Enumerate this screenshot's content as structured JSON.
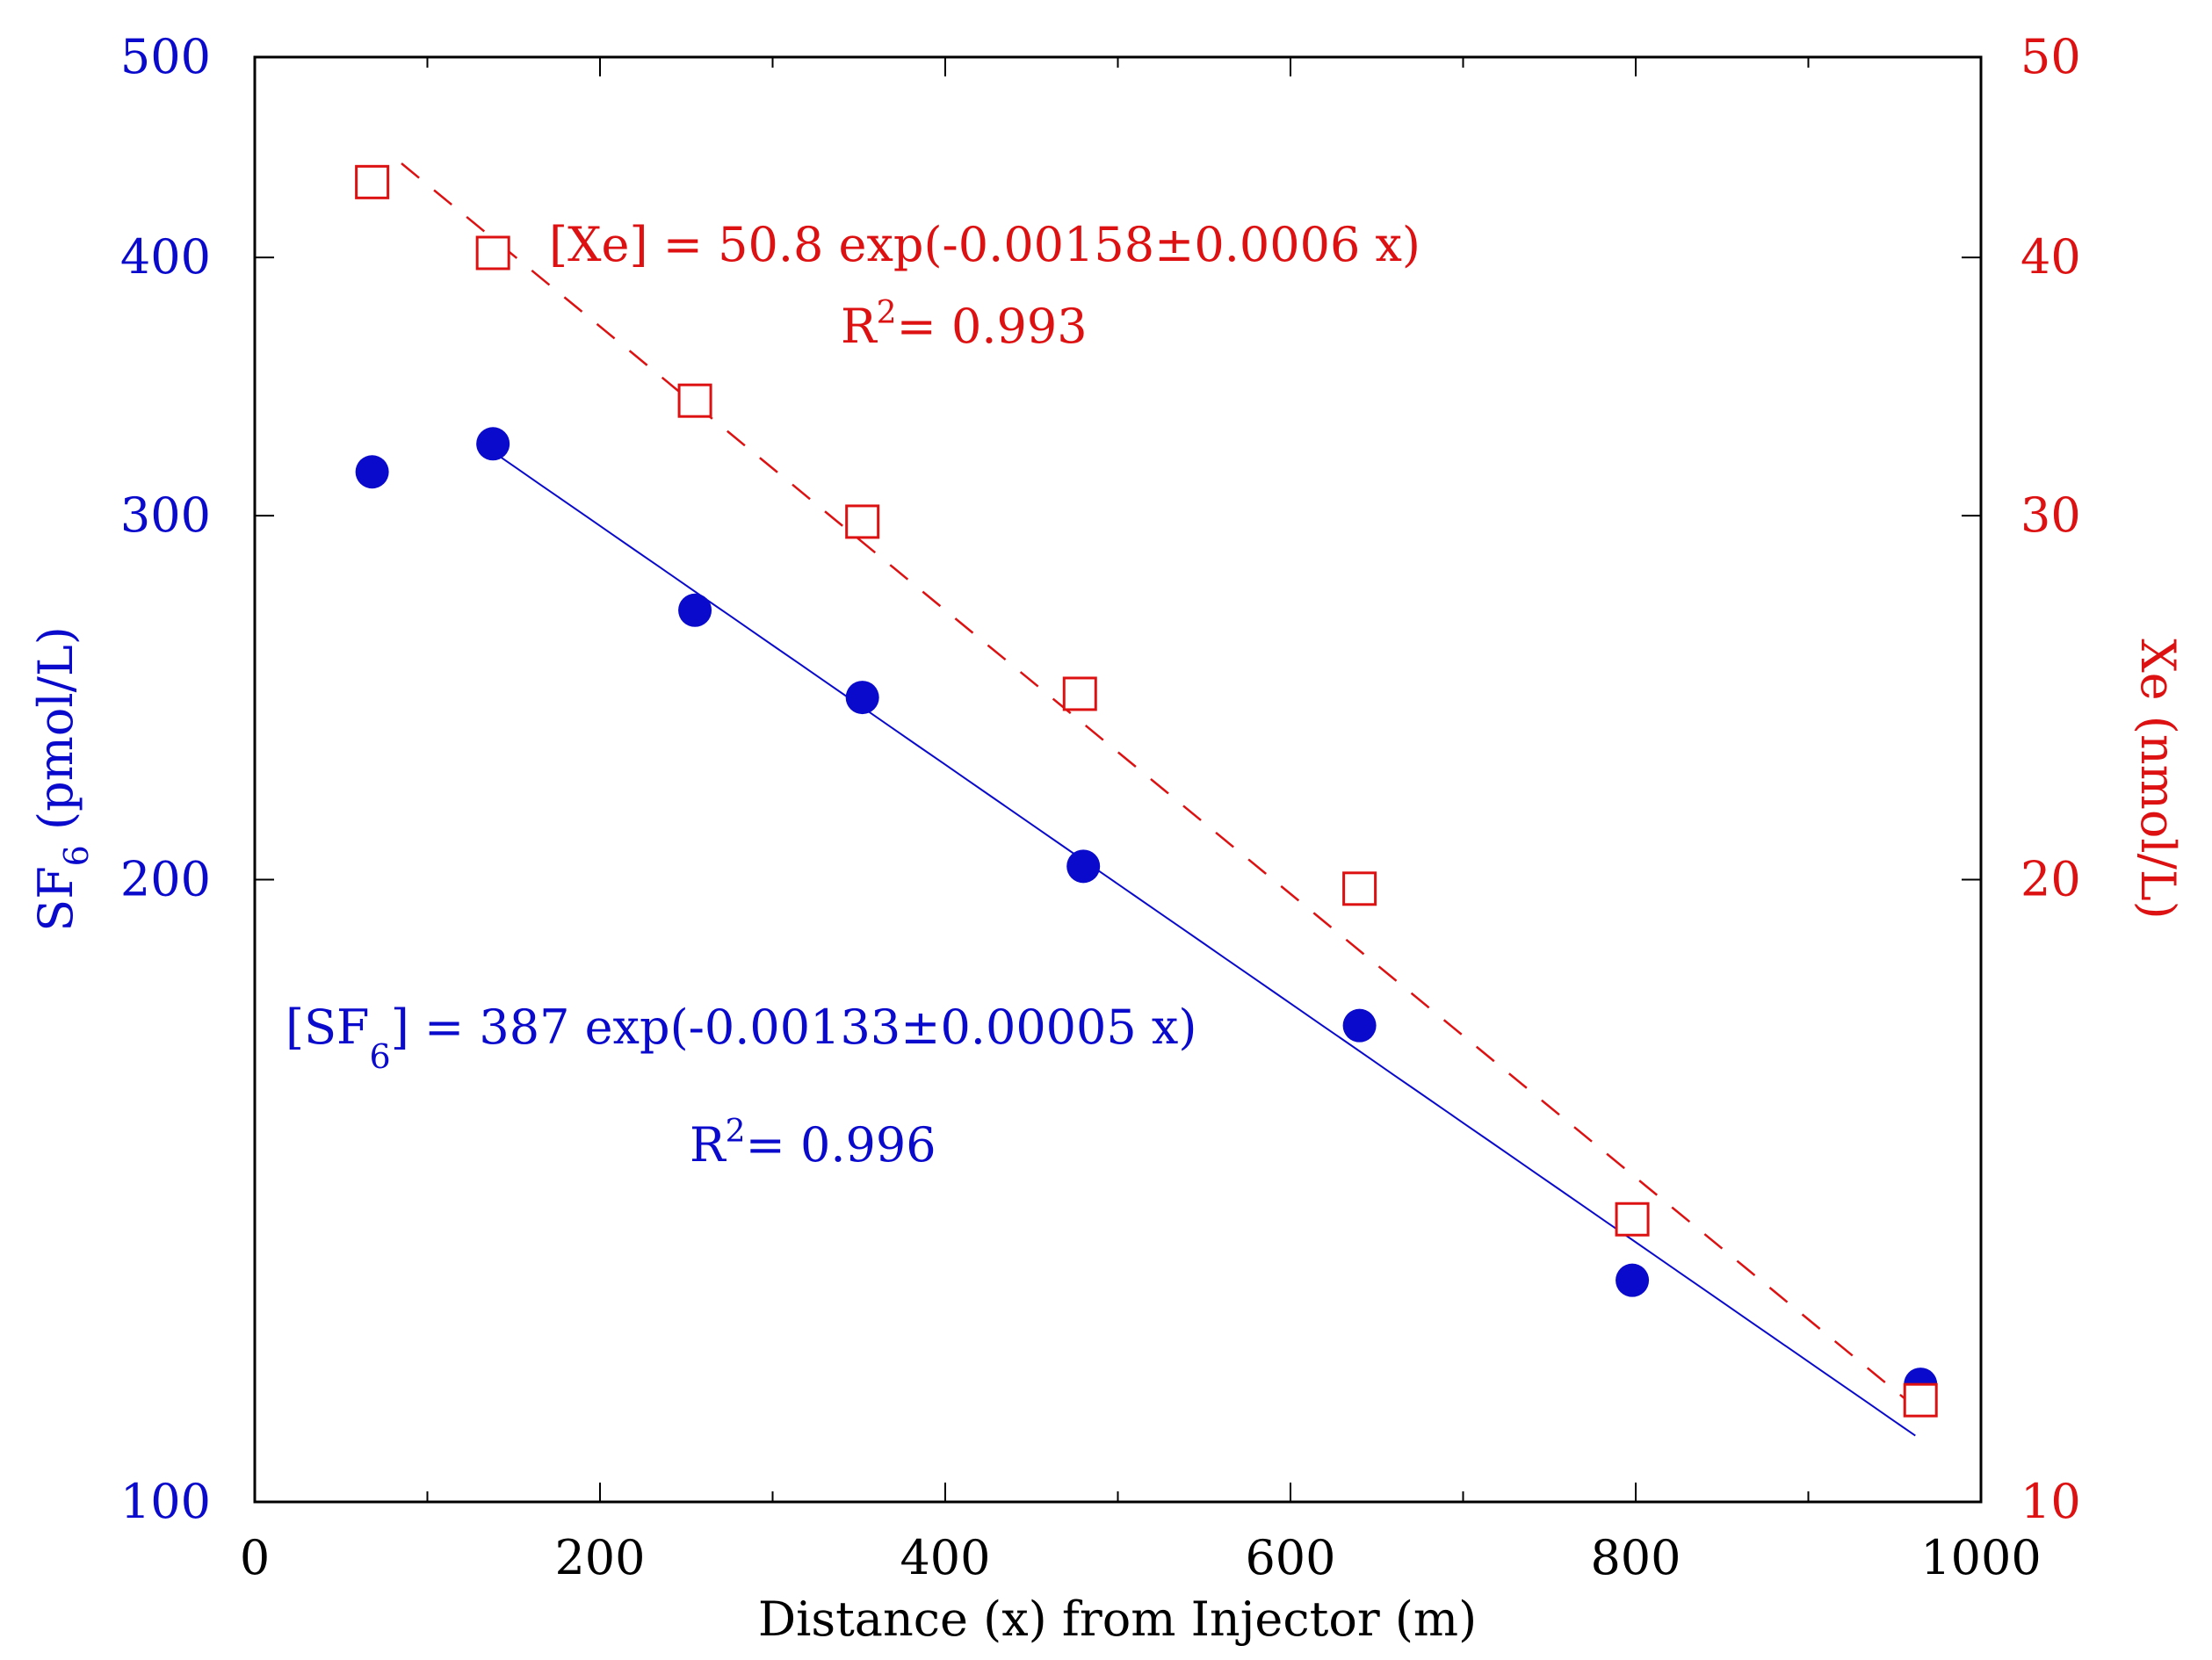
{
  "chart_data": {
    "type": "scatter",
    "log_scale": true,
    "xlabel": "Distance (x) from Injector (m)",
    "xlim": [
      0,
      1000
    ],
    "x_ticks": [
      0,
      200,
      400,
      600,
      800,
      1000
    ],
    "x_tick_labels": [
      "0",
      "200",
      "400",
      "600",
      "800",
      "1000"
    ],
    "left_axis": {
      "label_main": "SF",
      "label_sub": "6",
      "label_rest": " (pmol/L)",
      "ylim": [
        100,
        500
      ],
      "ticks": [
        100,
        200,
        300,
        400,
        500
      ],
      "tick_labels": [
        "100",
        "200",
        "300",
        "400",
        "500"
      ],
      "color": "#0a0acc"
    },
    "right_axis": {
      "label": "Xe (nmol/L)",
      "ylim": [
        10,
        50
      ],
      "ticks": [
        10,
        20,
        30,
        40,
        50
      ],
      "tick_labels": [
        "10",
        "20",
        "30",
        "40",
        "50"
      ],
      "color": "#dd1111"
    },
    "series": [
      {
        "name": "SF6",
        "axis": "left",
        "marker": "filled-circle",
        "color": "#0a0acc",
        "x": [
          68,
          138,
          255,
          352,
          480,
          640,
          798,
          965
        ],
        "y": [
          315,
          325,
          270,
          245,
          203,
          170,
          128,
          114
        ]
      },
      {
        "name": "Xe",
        "axis": "right",
        "marker": "open-square",
        "color": "#dd1111",
        "x": [
          68,
          138,
          255,
          352,
          478,
          640,
          798,
          965
        ],
        "y": [
          43.5,
          40.2,
          34.1,
          29.8,
          24.6,
          19.8,
          13.7,
          11.2
        ]
      }
    ],
    "fits": [
      {
        "name": "SF6 fit",
        "axis": "left",
        "style": "solid",
        "color": "#0a0acc",
        "a": 387,
        "k": 0.00133,
        "x_range": [
          138,
          962
        ]
      },
      {
        "name": "Xe fit",
        "axis": "right",
        "style": "dashed",
        "color": "#dd1111",
        "a": 50.8,
        "k": 0.00158,
        "x_range": [
          85,
          968
        ]
      }
    ],
    "annotations": {
      "xe_equation": "[Xe] = 50.8 exp(-0.00158±0.0006 x)",
      "xe_r2_prefix": "R",
      "xe_r2_sup": "2",
      "xe_r2_value": "= 0.993",
      "sf6_eq_open": "[SF",
      "sf6_eq_sub": "6",
      "sf6_eq_rest": "] = 387 exp(-0.00133±0.00005 x)",
      "sf6_r2_prefix": "R",
      "sf6_r2_sup": "2",
      "sf6_r2_value": "= 0.996"
    }
  }
}
